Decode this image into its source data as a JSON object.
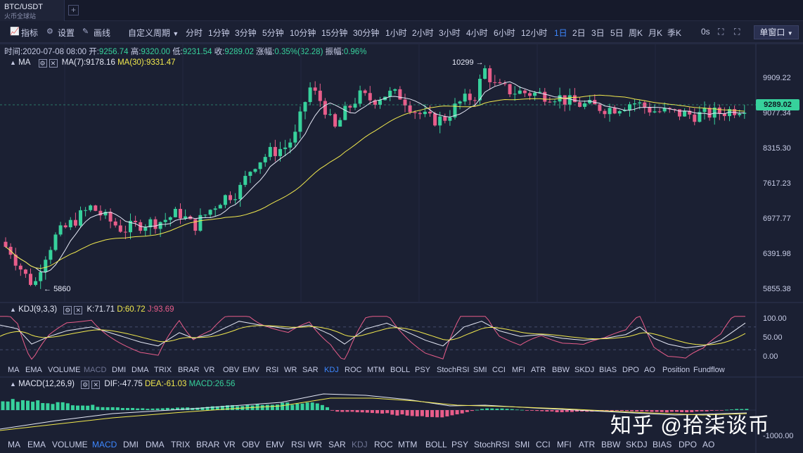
{
  "tab": {
    "title": "BTC/USDT",
    "subtitle": "火币全球站",
    "add": "+"
  },
  "toolbar": {
    "indicators": "指标",
    "settings": "设置",
    "draw": "画线",
    "custom_period": "自定义周期",
    "periods": [
      "分时",
      "1分钟",
      "3分钟",
      "5分钟",
      "10分钟",
      "15分钟",
      "30分钟",
      "1小时",
      "2小时",
      "3小时",
      "4小时",
      "6小时",
      "12小时",
      "1日",
      "2日",
      "3日",
      "5日",
      "周K",
      "月K",
      "季K"
    ],
    "active_period": "1日",
    "latency": "0s",
    "window_mode": "单窗口"
  },
  "ohlc": {
    "time_label": "时间:",
    "time": "2020-07-08 08:00",
    "open_label": "开:",
    "open": "9256.74",
    "high_label": "高:",
    "high": "9320.00",
    "low_label": "低:",
    "low": "9231.54",
    "close_label": "收:",
    "close": "9289.02",
    "change_label": "涨幅:",
    "change": "0.35%(32.28)",
    "amp_label": "振幅:",
    "amp": "0.96%"
  },
  "main_panel": {
    "indicator": "MA",
    "ma7": "MA(7):9178.16",
    "ma30": "MA(30):9331.47",
    "high_marker": "10299",
    "low_marker": "5860",
    "last_price": "9289.02",
    "axis": [
      "9909.22",
      "9077.34",
      "8315.30",
      "7617.23",
      "6977.77",
      "6391.98",
      "5855.38"
    ]
  },
  "kdj_panel": {
    "indicator": "KDJ(9,3,3)",
    "k": "K:71.71",
    "d": "D:60.72",
    "j": "J:93.69",
    "axis": [
      "100.00",
      "50.00",
      "0.00"
    ]
  },
  "kdj_tabs": [
    "MA",
    "EMA",
    "VOLUME",
    "MACD",
    "DMI",
    "DMA",
    "TRIX",
    "BRAR",
    "VR",
    "OBV",
    "EMV",
    "RSI",
    "WR",
    "SAR",
    "KDJ",
    "ROC",
    "MTM",
    "BOLL",
    "PSY",
    "StochRSI",
    "SMI",
    "CCI",
    "MFI",
    "ATR",
    "BBW",
    "SKDJ",
    "BIAS",
    "DPO",
    "AO",
    "Position",
    "Fundflow"
  ],
  "kdj_tabs_selected": "KDJ",
  "macd_panel": {
    "indicator": "MACD(12,26,9)",
    "dif": "DIF:-47.75",
    "dea": "DEA:-61.03",
    "macd": "MACD:26.56",
    "axis": [
      "-1000.00"
    ]
  },
  "macd_tabs": [
    "MA",
    "EMA",
    "VOLUME",
    "MACD",
    "DMI",
    "DMA",
    "TRIX",
    "BRAR",
    "VR",
    "OBV",
    "EMV",
    "RSI",
    "WR",
    "SAR",
    "KDJ",
    "ROC",
    "MTM",
    "BOLL",
    "PSY",
    "StochRSI",
    "SMI",
    "CCI",
    "MFI",
    "ATR",
    "BBW",
    "SKDJ",
    "BIAS",
    "DPO",
    "AO"
  ],
  "macd_tabs_selected": "MACD",
  "watermark": "知乎 @拾柒谈币",
  "colors": {
    "up": "#37d19c",
    "down": "#e85d8a",
    "ma7": "#e6e9f7",
    "ma30": "#f2e94e",
    "accent": "#3d87ff",
    "bg": "#1b2033"
  }
}
